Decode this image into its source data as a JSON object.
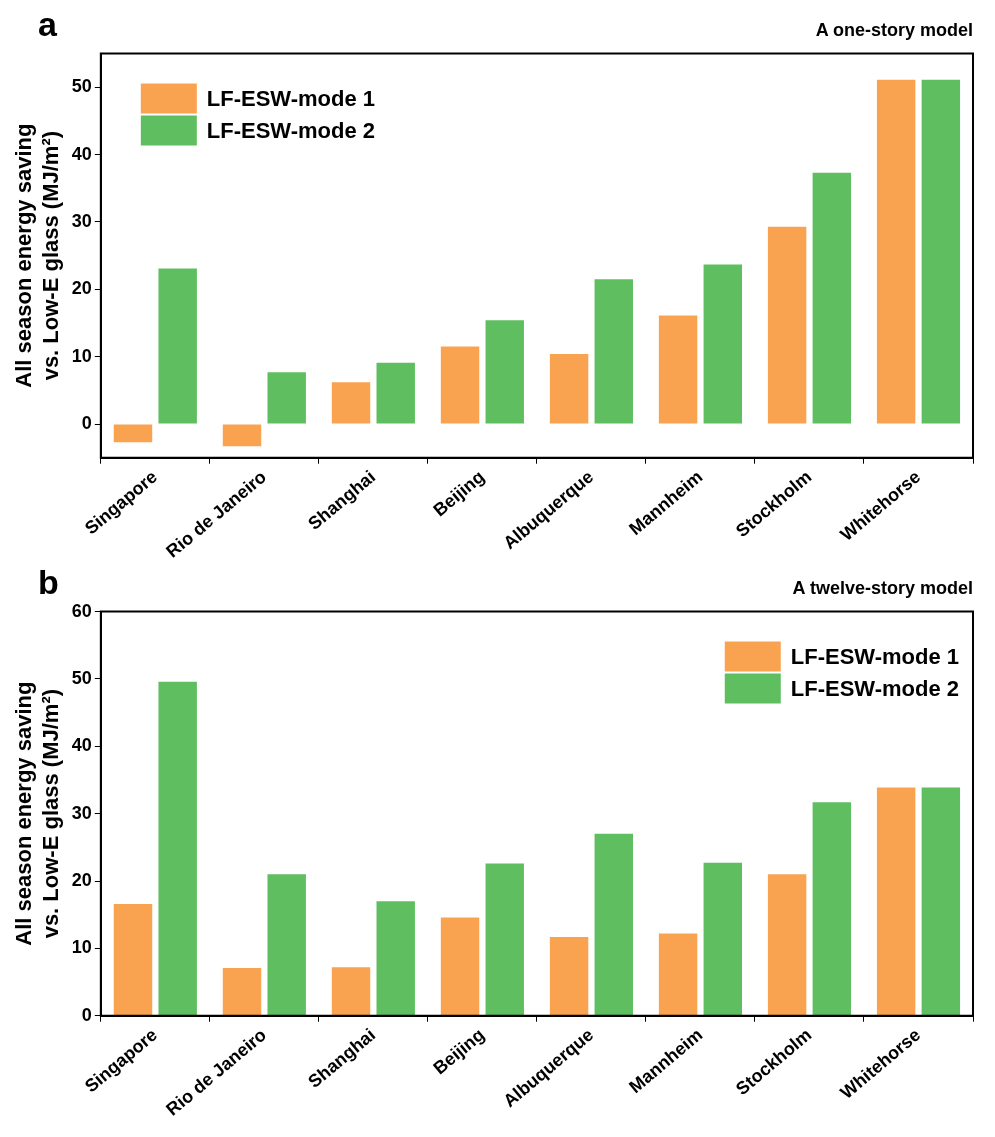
{
  "chart_data": [
    {
      "type": "bar",
      "title": "A one-story model",
      "annotations": [
        "a"
      ],
      "ylabel": "All season energy saving\nvs. Low-E glass (MJ/m²)",
      "categories": [
        "Singapore",
        "Rio de Janeiro",
        "Shanghai",
        "Beijing",
        "Albuquerque",
        "Mannheim",
        "Stockholm",
        "Whitehorse"
      ],
      "series": [
        {
          "name": "LF-ESW-mode 1",
          "color": "#f9a350",
          "values": [
            -2.7,
            -3.3,
            6.2,
            11.5,
            10.4,
            16.1,
            29.3,
            51.1
          ]
        },
        {
          "name": "LF-ESW-mode 2",
          "color": "#5fbf60",
          "values": [
            23.1,
            7.7,
            9.1,
            15.4,
            21.5,
            23.7,
            37.3,
            51.1
          ]
        }
      ],
      "ylim": [
        -5,
        55
      ],
      "yticks": [
        0,
        10,
        20,
        30,
        40,
        50
      ],
      "grid": false,
      "legend": "top left"
    },
    {
      "type": "bar",
      "title": "A twelve-story model",
      "annotations": [
        "b"
      ],
      "ylabel": "All season energy saving\nvs. Low-E glass (MJ/m²)",
      "categories": [
        "Singapore",
        "Rio de Janeiro",
        "Shanghai",
        "Beijing",
        "Albuquerque",
        "Mannheim",
        "Stockholm",
        "Whitehorse"
      ],
      "series": [
        {
          "name": "LF-ESW-mode 1",
          "color": "#f9a350",
          "values": [
            16.6,
            7.1,
            7.2,
            14.6,
            11.7,
            12.2,
            21.0,
            33.9
          ]
        },
        {
          "name": "LF-ESW-mode 2",
          "color": "#5fbf60",
          "values": [
            49.6,
            21.0,
            17.0,
            22.6,
            27.0,
            22.7,
            31.7,
            33.9
          ]
        }
      ],
      "ylim": [
        0,
        60
      ],
      "yticks": [
        0,
        10,
        20,
        30,
        40,
        50,
        60
      ],
      "grid": false,
      "legend": "top right"
    }
  ]
}
